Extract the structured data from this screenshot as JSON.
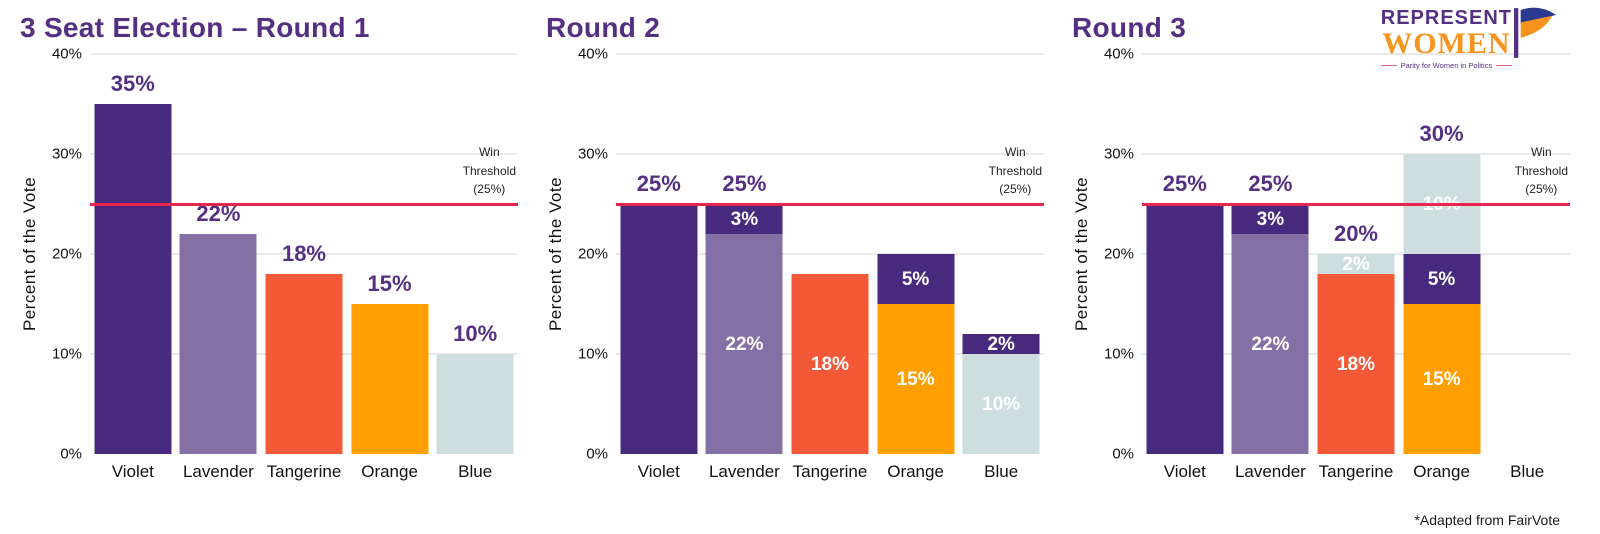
{
  "header": {
    "logo": {
      "line1": "REPRESENT",
      "line2": "WOMEN",
      "tagline": "Parity for Women in Politics"
    }
  },
  "footnote": "*Adapted from FairVote",
  "colors": {
    "violet": "#472A7D",
    "lavender": "#8570A5",
    "tangerine": "#F45937",
    "orange": "#FF9F02",
    "blue": "#CEDDDD",
    "threshold_line": "#E8254E",
    "title_purple": "#542F82",
    "grid": "#E9E9E9",
    "logo_purple": "#542F82",
    "logo_orange": "#F7941E",
    "flag_blue": "#2B3990"
  },
  "chart_data": [
    {
      "type": "bar",
      "title": "3 Seat Election – Round 1",
      "ylabel": "Percent of the Vote",
      "ylim": [
        0,
        40
      ],
      "yticks": [
        40,
        30,
        20,
        10,
        0
      ],
      "grid": true,
      "threshold": {
        "value": 25,
        "label_lines": [
          "Win",
          "Threshold",
          "(25%)"
        ]
      },
      "categories": [
        "Violet",
        "Lavender",
        "Tangerine",
        "Orange",
        "Blue"
      ],
      "bars": [
        {
          "category": "Violet",
          "total_label": "35%",
          "segments": [
            {
              "value": 35,
              "color": "violet",
              "label": null
            }
          ]
        },
        {
          "category": "Lavender",
          "total_label": "22%",
          "segments": [
            {
              "value": 22,
              "color": "lavender",
              "label": null
            }
          ]
        },
        {
          "category": "Tangerine",
          "total_label": "18%",
          "segments": [
            {
              "value": 18,
              "color": "tangerine",
              "label": null
            }
          ]
        },
        {
          "category": "Orange",
          "total_label": "15%",
          "segments": [
            {
              "value": 15,
              "color": "orange",
              "label": null
            }
          ]
        },
        {
          "category": "Blue",
          "total_label": "10%",
          "segments": [
            {
              "value": 10,
              "color": "blue",
              "label": null
            }
          ]
        }
      ]
    },
    {
      "type": "bar",
      "title": "Round 2",
      "ylabel": "Percent of the Vote",
      "ylim": [
        0,
        40
      ],
      "yticks": [
        40,
        30,
        20,
        10,
        0
      ],
      "grid": true,
      "threshold": {
        "value": 25,
        "label_lines": [
          "Win",
          "Threshold",
          "(25%)"
        ]
      },
      "categories": [
        "Violet",
        "Lavender",
        "Tangerine",
        "Orange",
        "Blue"
      ],
      "bars": [
        {
          "category": "Violet",
          "total_label": "25%",
          "segments": [
            {
              "value": 25,
              "color": "violet",
              "label": null
            }
          ]
        },
        {
          "category": "Lavender",
          "total_label": "25%",
          "segments": [
            {
              "value": 22,
              "color": "lavender",
              "label": "22%"
            },
            {
              "value": 3,
              "color": "violet",
              "label": "3%"
            }
          ]
        },
        {
          "category": "Tangerine",
          "total_label": null,
          "segments": [
            {
              "value": 18,
              "color": "tangerine",
              "label": "18%"
            }
          ]
        },
        {
          "category": "Orange",
          "total_label": null,
          "segments": [
            {
              "value": 15,
              "color": "orange",
              "label": "15%"
            },
            {
              "value": 5,
              "color": "violet",
              "label": "5%"
            }
          ]
        },
        {
          "category": "Blue",
          "total_label": null,
          "segments": [
            {
              "value": 10,
              "color": "blue",
              "label": "10%"
            },
            {
              "value": 2,
              "color": "violet",
              "label": "2%"
            }
          ]
        }
      ]
    },
    {
      "type": "bar",
      "title": "Round 3",
      "ylabel": "Percent of the Vote",
      "ylim": [
        0,
        40
      ],
      "yticks": [
        40,
        30,
        20,
        10,
        0
      ],
      "grid": true,
      "threshold": {
        "value": 25,
        "label_lines": [
          "Win",
          "Threshold",
          "(25%)"
        ]
      },
      "categories": [
        "Violet",
        "Lavender",
        "Tangerine",
        "Orange",
        "Blue"
      ],
      "bars": [
        {
          "category": "Violet",
          "total_label": "25%",
          "segments": [
            {
              "value": 25,
              "color": "violet",
              "label": null
            }
          ]
        },
        {
          "category": "Lavender",
          "total_label": "25%",
          "segments": [
            {
              "value": 22,
              "color": "lavender",
              "label": "22%"
            },
            {
              "value": 3,
              "color": "violet",
              "label": "3%"
            }
          ]
        },
        {
          "category": "Tangerine",
          "total_label": "20%",
          "segments": [
            {
              "value": 18,
              "color": "tangerine",
              "label": "18%"
            },
            {
              "value": 2,
              "color": "blue",
              "label": "2%"
            }
          ]
        },
        {
          "category": "Orange",
          "total_label": "30%",
          "segments": [
            {
              "value": 15,
              "color": "orange",
              "label": "15%"
            },
            {
              "value": 5,
              "color": "violet",
              "label": "5%"
            },
            {
              "value": 10,
              "color": "blue",
              "label": "10%"
            }
          ]
        },
        {
          "category": "Blue",
          "total_label": null,
          "segments": []
        }
      ]
    }
  ]
}
